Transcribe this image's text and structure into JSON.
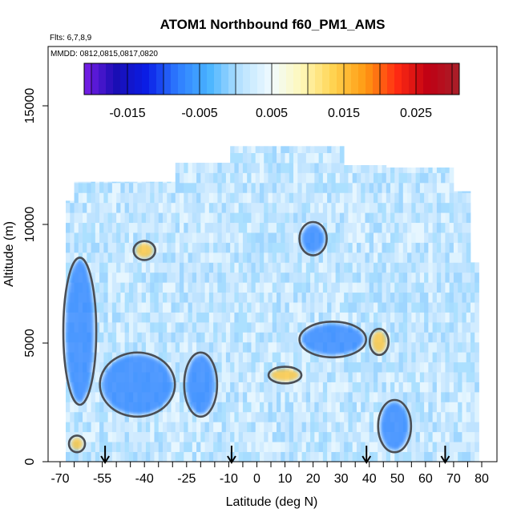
{
  "chart_data": {
    "type": "heatmap",
    "title": "ATOM1 Northbound f60_PM1_AMS",
    "notes": [
      "Flts: 6,7,8,9",
      "MMDD: 0812,0815,0817,0820"
    ],
    "xlabel": "Latitude (deg N)",
    "ylabel": "Altitude (m)",
    "xlim": [
      -70,
      80
    ],
    "ylim": [
      0,
      17500
    ],
    "x_ticks": [
      -70,
      -55,
      -40,
      -25,
      -10,
      0,
      10,
      20,
      30,
      40,
      50,
      60,
      70,
      80
    ],
    "x_tick_labels": [
      "-70",
      "-55",
      "-40",
      "-25",
      "-10",
      "0",
      "10",
      "20",
      "30",
      "40",
      "50",
      "60",
      "70",
      "80"
    ],
    "y_ticks": [
      0,
      5000,
      10000,
      15000
    ],
    "y_tick_labels": [
      "0",
      "5000",
      "10000",
      "15000"
    ],
    "colorbar": {
      "range": [
        -0.021,
        0.031
      ],
      "tick_values": [
        -0.015,
        -0.005,
        0.005,
        0.015,
        0.025
      ],
      "tick_labels": [
        "-0.015",
        "-0.005",
        "0.005",
        "0.015",
        "0.025"
      ],
      "colors": [
        "#7a1fe8",
        "#1a0db3",
        "#0a1ee6",
        "#2e7dff",
        "#49b4ff",
        "#b8e2ff",
        "#f1fbff",
        "#fff7b5",
        "#ffd24d",
        "#ff9a12",
        "#ff2b12",
        "#c00014",
        "#a8202a"
      ]
    },
    "arrow_latitudes": [
      -54,
      -9,
      39,
      67
    ],
    "regions": [
      {
        "label": "blue",
        "x0": -68,
        "x1": -58,
        "y0": 2500,
        "y1": 8500
      },
      {
        "label": "blue",
        "x0": -55,
        "x1": -30,
        "y0": 2000,
        "y1": 4500
      },
      {
        "label": "blue",
        "x0": -25,
        "x1": -15,
        "y0": 2000,
        "y1": 4500
      },
      {
        "label": "blue",
        "x0": 16,
        "x1": 38,
        "y0": 4500,
        "y1": 5800
      },
      {
        "label": "blue",
        "x0": 16,
        "x1": 24,
        "y0": 8800,
        "y1": 10000
      },
      {
        "label": "blue",
        "x0": 44,
        "x1": 54,
        "y0": 500,
        "y1": 2500
      },
      {
        "label": "orange",
        "x0": 5,
        "x1": 15,
        "y0": 3400,
        "y1": 3900
      },
      {
        "label": "orange",
        "x0": 41,
        "x1": 46,
        "y0": 4600,
        "y1": 5500
      },
      {
        "label": "orange",
        "x0": -43,
        "x1": -37,
        "y0": 8600,
        "y1": 9200
      },
      {
        "label": "orange",
        "x0": -66,
        "x1": -62,
        "y0": 500,
        "y1": 1000
      }
    ]
  }
}
